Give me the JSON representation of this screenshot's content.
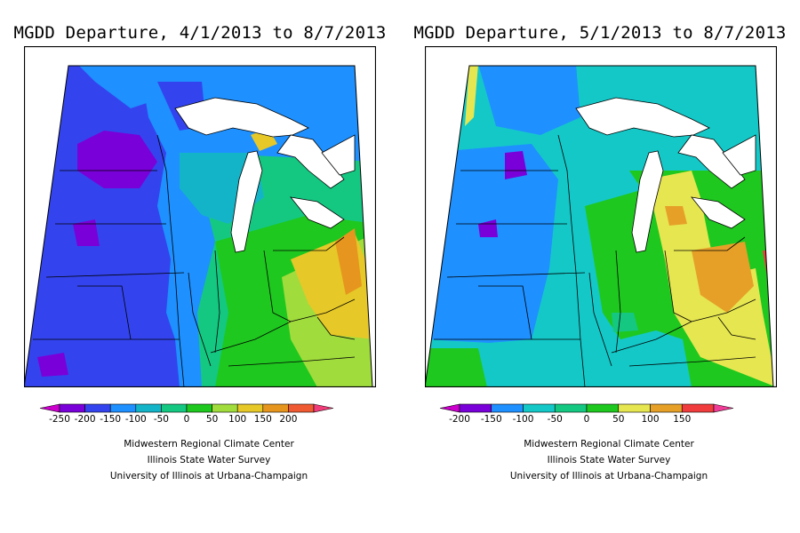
{
  "panels": [
    {
      "title": "MGDD Departure, 4/1/2013 to 8/7/2013",
      "legend": {
        "colors": [
          "#cc00cc",
          "#7a00d9",
          "#3344ee",
          "#1e90ff",
          "#14b4c8",
          "#14c882",
          "#1ec81e",
          "#a0dc3c",
          "#e6c828",
          "#e6961e",
          "#f05a32",
          "#f03c78"
        ],
        "labels": [
          "-250",
          "-200",
          "-150",
          "-100",
          "-50",
          "0",
          "50",
          "100",
          "150",
          "200"
        ]
      },
      "credits": [
        "Midwestern Regional Climate Center",
        "Illinois State Water Survey",
        "University of Illinois at Urbana-Champaign"
      ]
    },
    {
      "title": "MGDD Departure, 5/1/2013 to 8/7/2013",
      "legend": {
        "colors": [
          "#cc00cc",
          "#7a00d9",
          "#1e90ff",
          "#14c8c8",
          "#14c882",
          "#1ec81e",
          "#e6e650",
          "#e6a028",
          "#f03c3c",
          "#f03c96"
        ],
        "labels": [
          "-200",
          "-150",
          "-100",
          "-50",
          "0",
          "50",
          "100",
          "150"
        ]
      },
      "credits": [
        "Midwestern Regional Climate Center",
        "Illinois State Water Survey",
        "University of Illinois at Urbana-Champaign"
      ]
    }
  ]
}
